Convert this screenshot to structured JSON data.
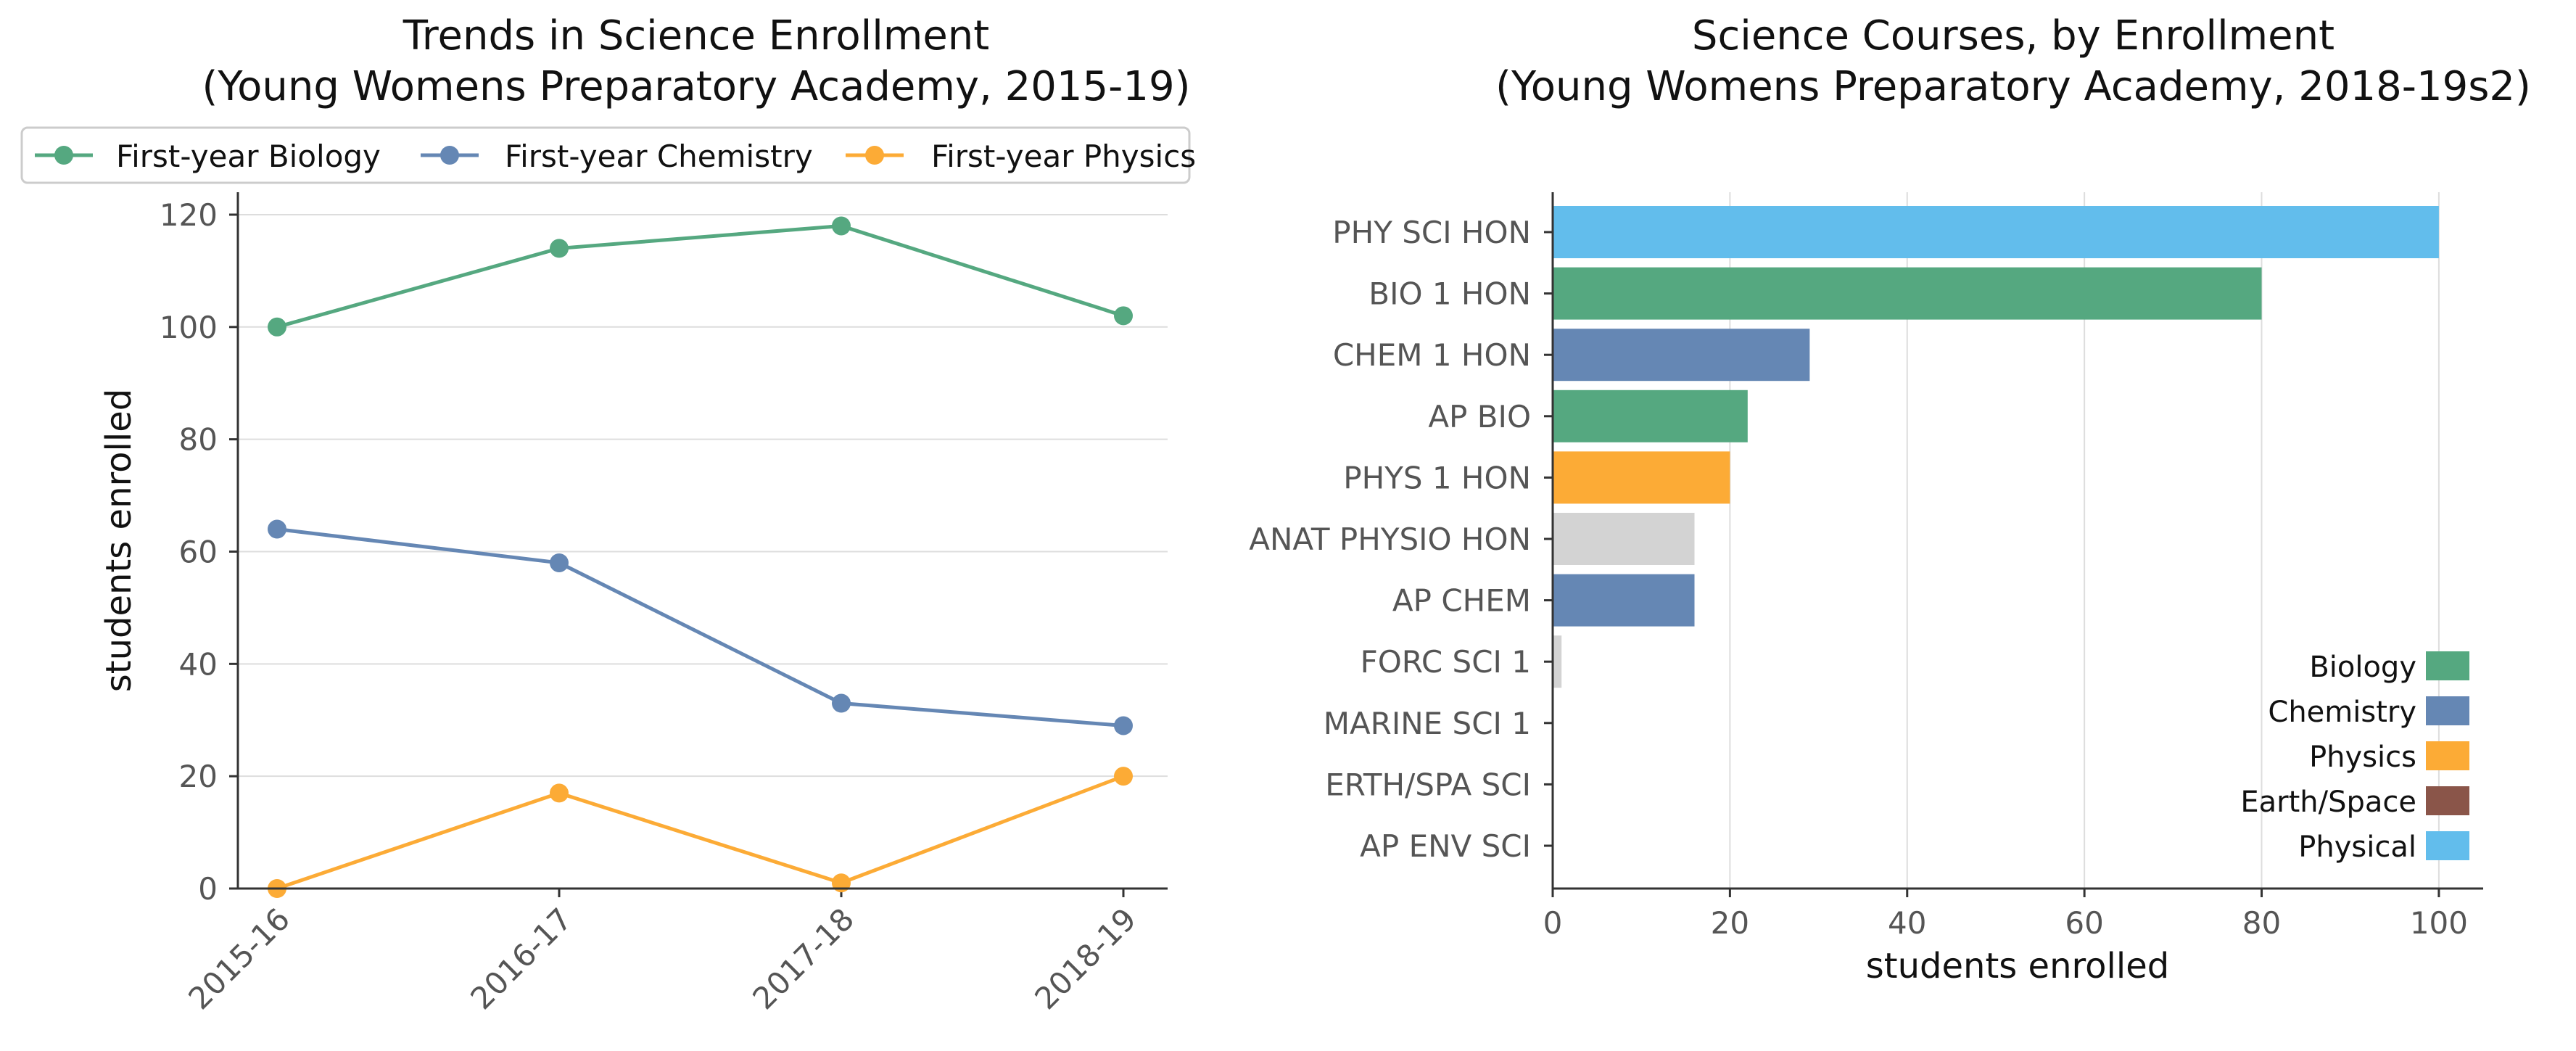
{
  "chart_data": [
    {
      "type": "line",
      "title": "Trends in Science Enrollment",
      "subtitle": "(Young Womens Preparatory Academy, 2015-19)",
      "xlabel": "",
      "ylabel": "students enrolled",
      "categories": [
        "2015-16",
        "2016-17",
        "2017-18",
        "2018-19"
      ],
      "ylim": [
        0,
        124
      ],
      "yticks": [
        0,
        20,
        40,
        60,
        80,
        100,
        120
      ],
      "grid": "horizontal",
      "legend_position": "top",
      "series": [
        {
          "name": "First-year Biology",
          "color": "#55a880",
          "values": [
            100,
            114,
            118,
            102
          ]
        },
        {
          "name": "First-year Chemistry",
          "color": "#6587b4",
          "values": [
            64,
            58,
            33,
            29
          ]
        },
        {
          "name": "First-year Physics",
          "color": "#fcab36",
          "values": [
            0,
            17,
            1,
            20
          ]
        }
      ]
    },
    {
      "type": "bar",
      "orientation": "horizontal",
      "title": "Science Courses, by Enrollment",
      "subtitle": "(Young Womens Preparatory Academy, 2018-19s2)",
      "xlabel": "students enrolled",
      "ylabel": "",
      "xlim": [
        0,
        105
      ],
      "xticks": [
        0,
        20,
        40,
        60,
        80,
        100
      ],
      "grid": "vertical",
      "legend_position": "bottom-right",
      "categories": [
        "PHY SCI HON",
        "BIO 1 HON",
        "CHEM 1 HON",
        "AP BIO",
        "PHYS 1 HON",
        "ANAT PHYSIO HON",
        "AP CHEM",
        "FORC SCI 1",
        "MARINE SCI 1",
        "ERTH/SPA SCI",
        "AP ENV SCI"
      ],
      "values": [
        100,
        80,
        29,
        22,
        20,
        16,
        16,
        1,
        0,
        0,
        0
      ],
      "bar_colors": [
        "#62bdec",
        "#55a880",
        "#6587b4",
        "#55a880",
        "#fcab36",
        "#d3d3d3",
        "#6587b4",
        "#d3d3d3",
        "#d3d3d3",
        "#d3d3d3",
        "#d3d3d3"
      ],
      "legend": [
        {
          "name": "Biology",
          "color": "#55a880"
        },
        {
          "name": "Chemistry",
          "color": "#6587b4"
        },
        {
          "name": "Physics",
          "color": "#fcab36"
        },
        {
          "name": "Earth/Space",
          "color": "#8a5549"
        },
        {
          "name": "Physical",
          "color": "#62bdec"
        }
      ]
    }
  ]
}
